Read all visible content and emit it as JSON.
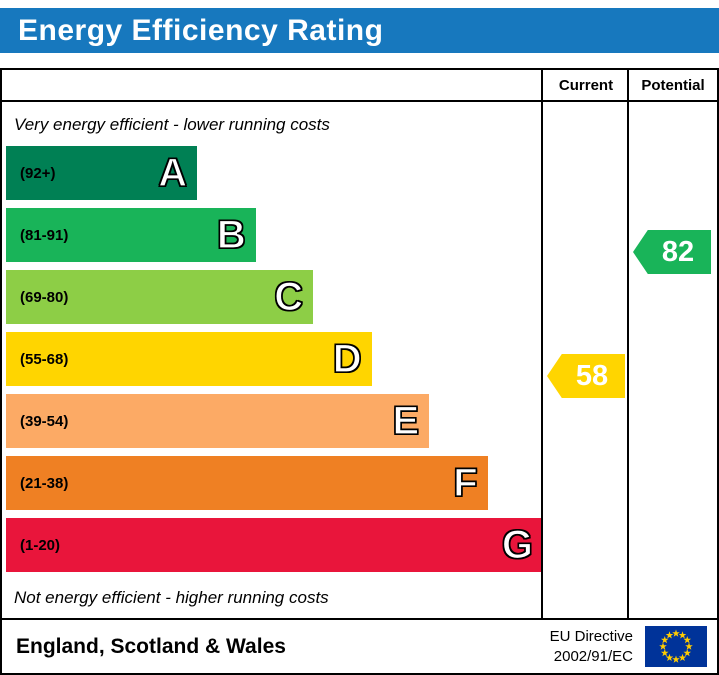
{
  "header": {
    "title": "Energy Efficiency Rating",
    "background": "#1778be"
  },
  "chart": {
    "columns": {
      "current": "Current",
      "potential": "Potential"
    },
    "top_caption": "Very energy efficient - lower running costs",
    "bottom_caption": "Not energy efficient - higher running costs"
  },
  "chart_data": {
    "type": "bar",
    "title": "Energy Efficiency Rating",
    "bands": [
      {
        "letter": "A",
        "range": "(92+)",
        "color": "#008054",
        "width_pct": 35.6
      },
      {
        "letter": "B",
        "range": "(81-91)",
        "color": "#19b459",
        "width_pct": 46.5
      },
      {
        "letter": "C",
        "range": "(69-80)",
        "color": "#8dce46",
        "width_pct": 57.2
      },
      {
        "letter": "D",
        "range": "(55-68)",
        "color": "#ffd500",
        "width_pct": 68.1
      },
      {
        "letter": "E",
        "range": "(39-54)",
        "color": "#fcaa65",
        "width_pct": 78.8
      },
      {
        "letter": "F",
        "range": "(21-38)",
        "color": "#ef8023",
        "width_pct": 89.7
      },
      {
        "letter": "G",
        "range": "(1-20)",
        "color": "#e9153b",
        "width_pct": 100
      }
    ],
    "current": {
      "value": 58,
      "band": "D",
      "color": "#ffd500"
    },
    "potential": {
      "value": 82,
      "band": "B",
      "color": "#19b459"
    }
  },
  "footer": {
    "region": "England, Scotland & Wales",
    "directive_line1": "EU Directive",
    "directive_line2": "2002/91/EC",
    "eu_flag": {
      "background": "#003399",
      "star_color": "#ffcc00"
    }
  }
}
